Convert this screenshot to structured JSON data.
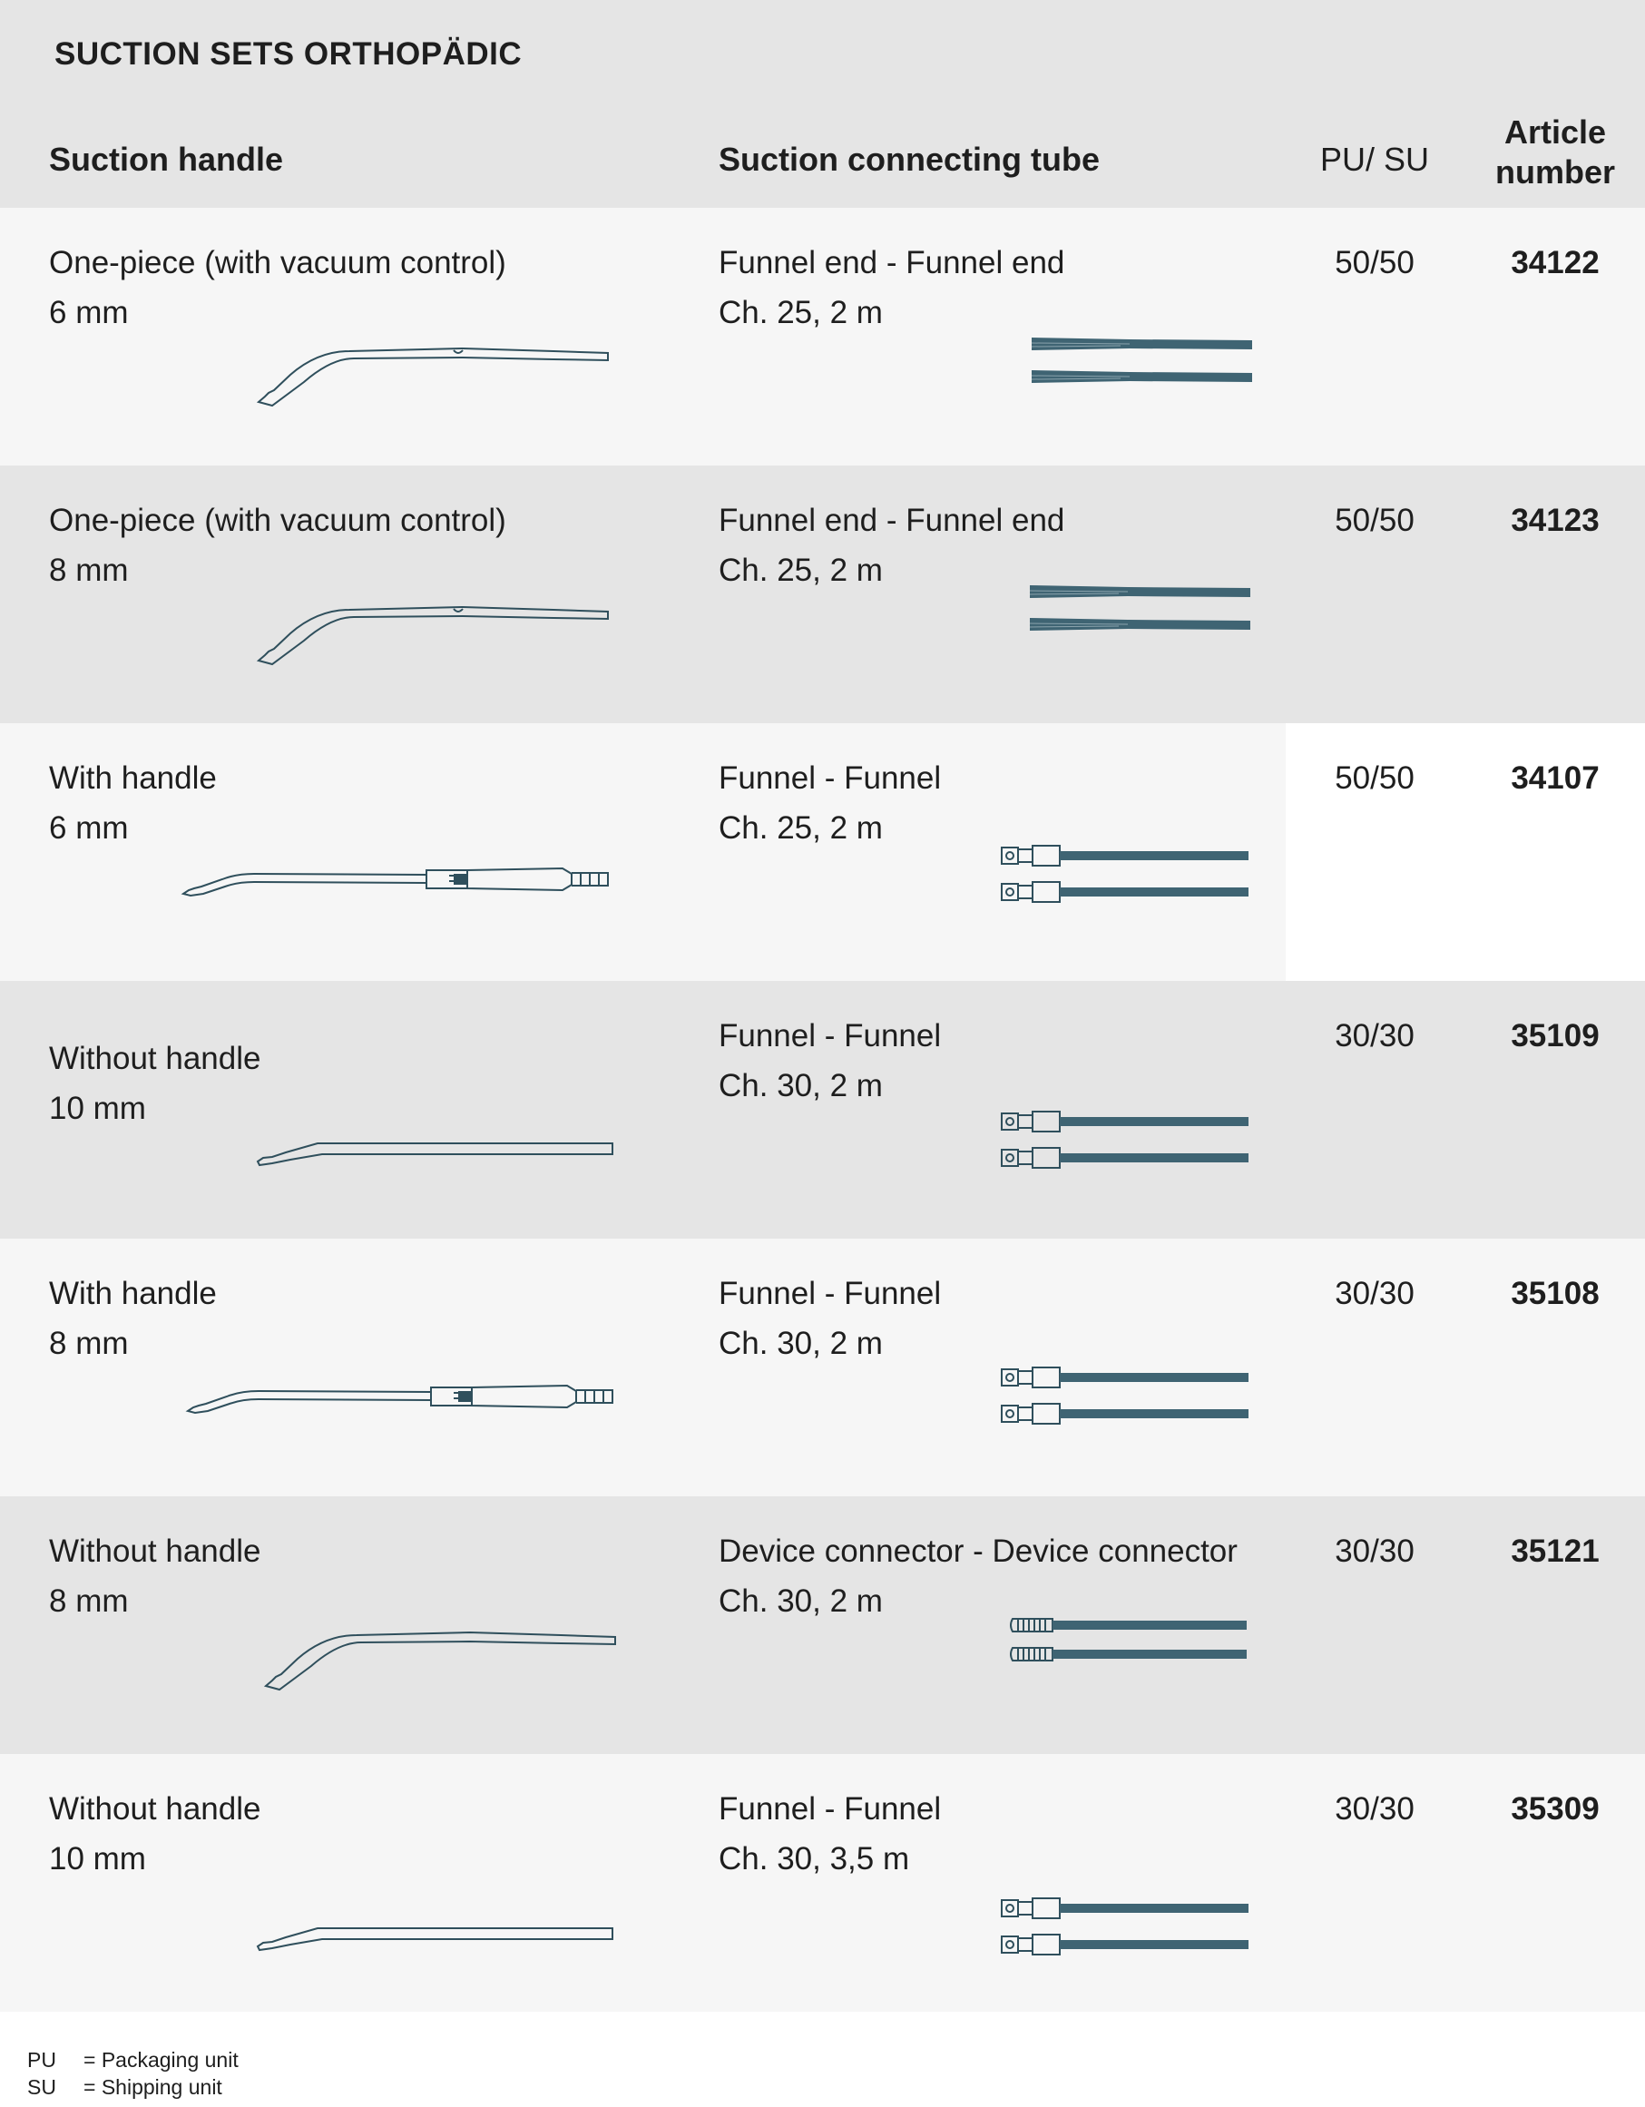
{
  "title": "SUCTION SETS ORTHOPÄDIC",
  "columns": {
    "handle": "Suction handle",
    "tube": "Suction connecting tube",
    "pu_su": "PU/ SU",
    "article": [
      "Article",
      "number"
    ]
  },
  "rows": [
    {
      "handle_name": "One-piece (with vacuum control)",
      "handle_size": "6 mm",
      "tube_name": "Funnel end - Funnel end",
      "tube_spec": "Ch. 25, 2 m",
      "pu_su": "50/50",
      "article": "34122",
      "handle_icon": "one-piece-suction-handle-icon",
      "tube_icon": "funnel-end-tube-icon"
    },
    {
      "handle_name": "One-piece (with vacuum control)",
      "handle_size": "8 mm",
      "tube_name": "Funnel end - Funnel end",
      "tube_spec": "Ch. 25, 2 m",
      "pu_su": "50/50",
      "article": "34123",
      "handle_icon": "one-piece-suction-handle-icon",
      "tube_icon": "funnel-end-tube-icon"
    },
    {
      "handle_name": "With handle",
      "handle_size": "6 mm",
      "tube_name": "Funnel - Funnel",
      "tube_spec": "Ch. 25, 2 m",
      "pu_su": "50/50",
      "article": "34107",
      "handle_icon": "suction-tip-with-handle-icon",
      "tube_icon": "funnel-connector-tube-icon"
    },
    {
      "handle_name": "Without handle",
      "handle_size": "10 mm",
      "tube_name": "Funnel - Funnel",
      "tube_spec": "Ch. 30, 2 m",
      "pu_su": "30/30",
      "article": "35109",
      "handle_icon": "straight-suction-tip-icon",
      "tube_icon": "funnel-connector-tube-icon"
    },
    {
      "handle_name": "With handle",
      "handle_size": "8 mm",
      "tube_name": "Funnel - Funnel",
      "tube_spec": "Ch. 30, 2 m",
      "pu_su": "30/30",
      "article": "35108",
      "handle_icon": "suction-tip-with-handle-icon",
      "tube_icon": "funnel-connector-tube-icon"
    },
    {
      "handle_name": "Without handle",
      "handle_size": "8 mm",
      "tube_name": "Device connector - Device connector",
      "tube_spec": "Ch. 30, 2 m",
      "pu_su": "30/30",
      "article": "35121",
      "handle_icon": "curved-suction-tip-icon",
      "tube_icon": "device-connector-tube-icon"
    },
    {
      "handle_name": "Without handle",
      "handle_size": "10 mm",
      "tube_name": "Funnel - Funnel",
      "tube_spec": "Ch. 30, 3,5 m",
      "pu_su": "30/30",
      "article": "35309",
      "handle_icon": "straight-suction-tip-icon",
      "tube_icon": "funnel-connector-tube-icon"
    }
  ],
  "legend": [
    {
      "abbr": "PU",
      "meaning": "= Packaging unit"
    },
    {
      "abbr": "SU",
      "meaning": "= Shipping unit"
    }
  ],
  "colors": {
    "tube": "#3f6473",
    "line": "#2f4f5c",
    "row_light": "#f6f6f6",
    "row_dark": "#e5e5e5"
  }
}
